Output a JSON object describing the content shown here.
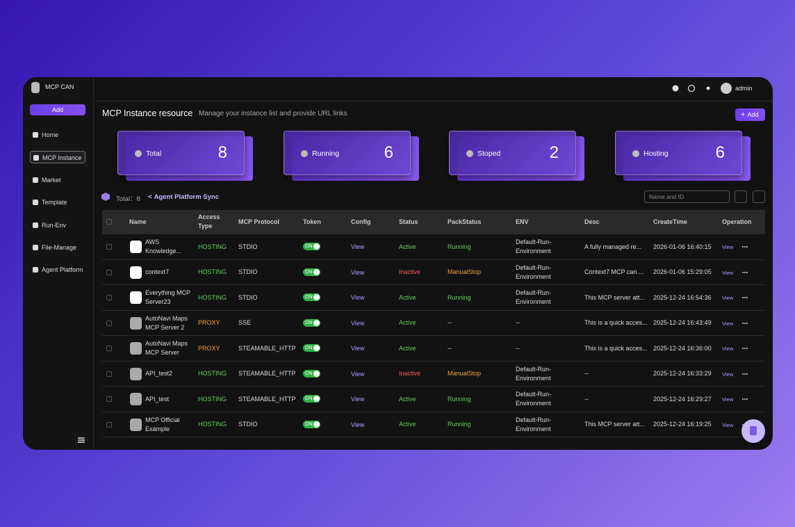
{
  "app": {
    "name": "MCP CAN",
    "add": "Add",
    "nav": [
      "Home",
      "MCP Instance",
      "Market",
      "Template",
      "Run-Env",
      "File-Manage",
      "Agent Platform"
    ],
    "active_nav": 1,
    "user": "admin"
  },
  "header": {
    "title": "MCP Instance resource",
    "subtitle": "Manage your instance list and provide URL links",
    "add": "Add"
  },
  "stats": [
    {
      "label": "Total",
      "value": 8
    },
    {
      "label": "Running",
      "value": 6
    },
    {
      "label": "Stoped",
      "value": 2
    },
    {
      "label": "Hosting",
      "value": 6
    }
  ],
  "toolbar": {
    "total_label": "Total：",
    "total": 8,
    "sync": "Agent Platform Sync",
    "search_placeholder": "Name and ID"
  },
  "table": {
    "columns": [
      "Name",
      "Access Type",
      "MCP Protocol",
      "Token",
      "Config",
      "Status",
      "PackStatus",
      "ENV",
      "Desc",
      "CreateTime",
      "Operation"
    ],
    "tone": {
      "HOSTING": "#62d15a",
      "PROXY": "#f0a43a",
      "Active": "#62d15a",
      "Inactive": "#ff5a5a",
      "Running": "#62d15a",
      "ManualStop": "#f0a43a"
    },
    "rows": [
      {
        "name": "AWS Knowledge...",
        "access": "HOSTING",
        "protocol": "STDIO",
        "token": "ON",
        "config": "View",
        "status": "Active",
        "pack": "Running",
        "env": "Default-Run-Environment",
        "desc": "A fully managed re...",
        "time": "2026-01-06 16:40:15",
        "op": "View"
      },
      {
        "name": "context7",
        "access": "HOSTING",
        "protocol": "STDIO",
        "token": "ON",
        "config": "View",
        "status": "Inactive",
        "pack": "ManualStop",
        "env": "Default-Run-Environment",
        "desc": "Context7 MCP can ...",
        "time": "2026-01-06 15:29:05",
        "op": "View"
      },
      {
        "name": "Everything MCP Server23",
        "access": "HOSTING",
        "protocol": "STDIO",
        "token": "ON",
        "config": "View",
        "status": "Active",
        "pack": "Running",
        "env": "Default-Run-Environment",
        "desc": "This MCP server att...",
        "time": "2025-12-24 16:54:36",
        "op": "View"
      },
      {
        "name": "AutoNavi Maps MCP Server 2",
        "access": "PROXY",
        "protocol": "SSE",
        "token": "ON",
        "config": "View",
        "status": "Active",
        "pack": "--",
        "env": "--",
        "desc": "This is a quick acces...",
        "time": "2025-12-24 16:43:49",
        "op": "View"
      },
      {
        "name": "AutoNavi Maps MCP Server",
        "access": "PROXY",
        "protocol": "STEAMABLE_HTTP",
        "token": "ON",
        "config": "View",
        "status": "Active",
        "pack": "--",
        "env": "--",
        "desc": "This is a quick acces...",
        "time": "2025-12-24 16:36:00",
        "op": "View"
      },
      {
        "name": "API_test2",
        "access": "HOSTING",
        "protocol": "STEAMABLE_HTTP",
        "token": "ON",
        "config": "View",
        "status": "Inactive",
        "pack": "ManualStop",
        "env": "Default-Run-Environment",
        "desc": "--",
        "time": "2025-12-24 16:33:29",
        "op": "View"
      },
      {
        "name": "API_test",
        "access": "HOSTING",
        "protocol": "STEAMABLE_HTTP",
        "token": "ON",
        "config": "View",
        "status": "Active",
        "pack": "Running",
        "env": "Default-Run-Environment",
        "desc": "--",
        "time": "2025-12-24 16:29:27",
        "op": "View"
      },
      {
        "name": "MCP Official Example",
        "access": "HOSTING",
        "protocol": "STDIO",
        "token": "ON",
        "config": "View",
        "status": "Active",
        "pack": "Running",
        "env": "Default-Run-Environment",
        "desc": "This MCP server att...",
        "time": "2025-12-24 16:19:25",
        "op": "View"
      }
    ]
  }
}
